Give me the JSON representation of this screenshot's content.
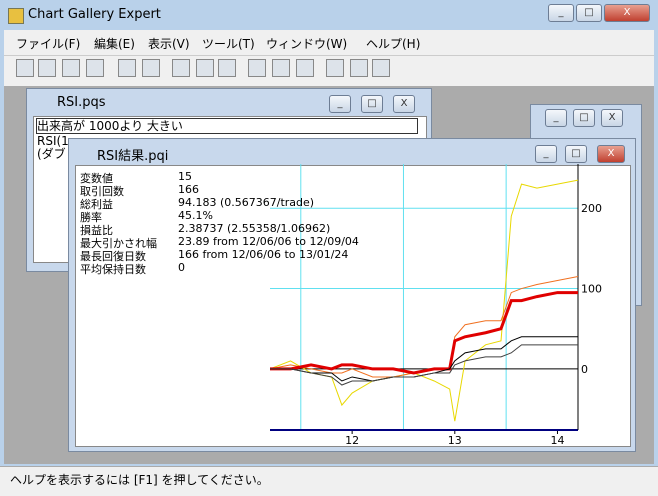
{
  "app": {
    "title": "Chart Gallery Expert"
  },
  "menu": [
    "ファイル(F)",
    "編集(E)",
    "表示(V)",
    "ツール(T)",
    "ウィンドウ(W)",
    "ヘルプ(H)"
  ],
  "query_window": {
    "title": "RSI.pqs",
    "lines": [
      "出来高が 1000より 大きい",
      "RSI(1",
      "(ダブ"
    ]
  },
  "result_window": {
    "title": "RSI結果.pqi",
    "stats": [
      {
        "label": "変数値",
        "value": 15
      },
      {
        "label": "取引回数",
        "value": 166
      },
      {
        "label": "総利益",
        "value": "94.183 (0.567367/trade)"
      },
      {
        "label": "勝率",
        "value": "45.1%"
      },
      {
        "label": "損益比",
        "value": "2.38737 (2.55358/1.06962)"
      },
      {
        "label": "最大引かされ幅",
        "value": "23.89 from 12/06/06 to 12/09/04"
      },
      {
        "label": "最長回復日数",
        "value": "166 from 12/06/06 to 13/01/24"
      },
      {
        "label": "平均保持日数",
        "value": 0
      }
    ]
  },
  "chart_data": {
    "type": "line",
    "x": [
      11.2,
      11.4,
      11.6,
      11.8,
      11.9,
      12.0,
      12.2,
      12.4,
      12.6,
      12.8,
      12.95,
      13.0,
      13.1,
      13.3,
      13.45,
      13.55,
      13.65,
      13.8,
      14.0,
      14.2
    ],
    "series": [
      {
        "color": "#e8d800",
        "values": [
          0,
          10,
          -5,
          -10,
          -45,
          -30,
          -15,
          -10,
          -5,
          -15,
          -25,
          -65,
          10,
          30,
          35,
          190,
          230,
          225,
          230,
          235
        ]
      },
      {
        "color": "#f07020",
        "values": [
          0,
          5,
          0,
          -5,
          -5,
          0,
          -10,
          -10,
          -5,
          0,
          0,
          40,
          55,
          60,
          60,
          95,
          100,
          105,
          110,
          115
        ]
      },
      {
        "color": "#e00000",
        "values": [
          0,
          0,
          5,
          0,
          5,
          5,
          0,
          0,
          -5,
          0,
          0,
          35,
          40,
          45,
          50,
          85,
          85,
          90,
          95,
          95
        ]
      },
      {
        "color": "#000000",
        "values": [
          0,
          0,
          -5,
          -5,
          -15,
          -10,
          -15,
          -10,
          -10,
          -5,
          0,
          10,
          20,
          25,
          25,
          35,
          40,
          40,
          40,
          40
        ]
      },
      {
        "color": "#404040",
        "values": [
          0,
          0,
          -5,
          -10,
          -20,
          -15,
          -15,
          -10,
          -10,
          -5,
          -5,
          5,
          10,
          15,
          15,
          20,
          30,
          30,
          30,
          30
        ]
      }
    ],
    "xlim": [
      11.2,
      14.2
    ],
    "ylim": [
      -76,
      255
    ],
    "xticks": [
      12,
      13,
      14
    ],
    "xgrid": [
      11.5,
      12.5,
      13.5
    ],
    "yticks": [
      0,
      100,
      200
    ],
    "grid": true
  },
  "status": "ヘルプを表示するには [F1] を押してください。"
}
